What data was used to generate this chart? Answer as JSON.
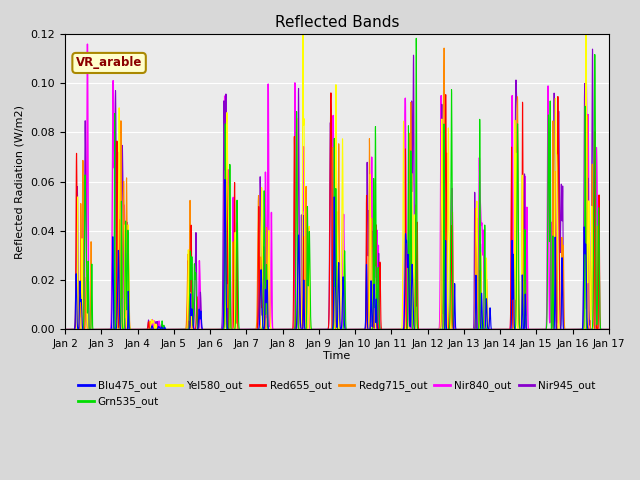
{
  "title": "Reflected Bands",
  "xlabel": "Time",
  "ylabel": "Reflected Radiation (W/m2)",
  "xlim": [
    0,
    15
  ],
  "ylim": [
    0,
    0.12
  ],
  "yticks": [
    0.0,
    0.02,
    0.04,
    0.06,
    0.08,
    0.1,
    0.12
  ],
  "xtick_labels": [
    "Jan 2",
    "Jan 3",
    "Jan 4",
    "Jan 5",
    "Jan 6",
    "Jan 7",
    "Jan 8",
    "Jan 9",
    "Jan 10",
    "Jan 11",
    "Jan 12",
    "Jan 13",
    "Jan 14",
    "Jan 15",
    "Jan 16",
    "Jan 17"
  ],
  "annotation_text": "VR_arable",
  "series": {
    "Blu475_out": {
      "color": "#0000ff",
      "lw": 0.8
    },
    "Grn535_out": {
      "color": "#00dd00",
      "lw": 0.8
    },
    "Yel580_out": {
      "color": "#ffff00",
      "lw": 0.8
    },
    "Red655_out": {
      "color": "#ff0000",
      "lw": 0.8
    },
    "Redg715_out": {
      "color": "#ff8800",
      "lw": 0.8
    },
    "Nir840_out": {
      "color": "#ff00ff",
      "lw": 1.0
    },
    "Nir945_out": {
      "color": "#8800cc",
      "lw": 0.8
    }
  },
  "bg_color": "#d8d8d8",
  "plot_bg": "#ebebeb",
  "nir840_peaks": [
    0.06,
    0.1,
    0.004,
    0.036,
    0.095,
    0.064,
    0.101,
    0.087,
    0.07,
    0.094,
    0.095,
    0.058,
    0.095,
    0.099,
    0.103
  ],
  "blu_ratio": 0.38,
  "grn_ratio": 0.88,
  "yel_ratio": 0.9,
  "red_ratio": 0.78,
  "redg_ratio": 0.85,
  "nir945_ratio": 0.97
}
